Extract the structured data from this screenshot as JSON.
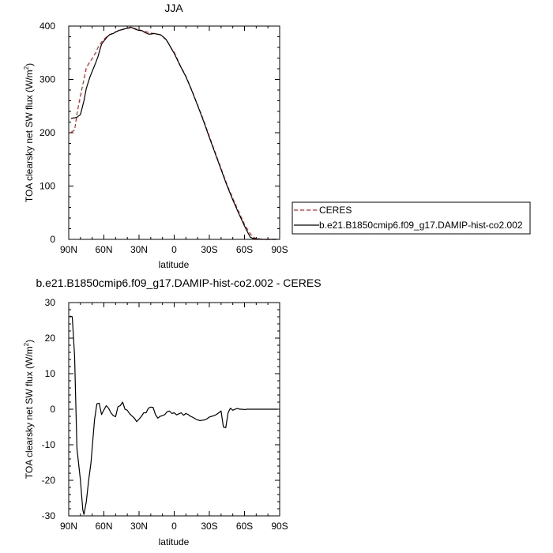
{
  "chart_data": [
    {
      "type": "line",
      "title": "JJA",
      "xlabel": "latitude",
      "ylabel": "TOA clearsky net SW flux (W/m²)",
      "xlim": [
        90,
        -90
      ],
      "ylim": [
        0,
        400
      ],
      "x_ticks": [
        90,
        60,
        30,
        0,
        -30,
        -60,
        -90
      ],
      "x_tick_labels": [
        "90N",
        "60N",
        "30N",
        "0",
        "30S",
        "60S",
        "90S"
      ],
      "y_ticks": [
        0,
        100,
        200,
        300,
        400
      ],
      "y_tick_labels": [
        "0",
        "100",
        "200",
        "300",
        "400"
      ],
      "legend": "outside-right",
      "series": [
        {
          "name": "CERES",
          "color": "#e8191a",
          "dash": "dashed",
          "x": [
            88,
            85,
            83,
            80,
            77,
            75,
            72,
            70,
            67,
            65,
            62,
            60,
            57,
            55,
            52,
            50,
            47,
            45,
            42,
            40,
            37,
            35,
            32,
            30,
            27,
            25,
            22,
            20,
            17,
            15,
            12,
            10,
            7,
            5,
            2,
            0,
            -5,
            -10,
            -15,
            -20,
            -25,
            -30,
            -35,
            -40,
            -45,
            -50,
            -55,
            -60,
            -63,
            -65,
            -67,
            -70,
            -72,
            -75,
            -80,
            -85,
            -88
          ],
          "y": [
            201,
            205,
            235,
            270,
            300,
            322,
            333,
            339,
            350,
            360,
            370,
            375,
            381,
            384,
            387,
            389,
            391,
            393,
            394,
            396,
            396,
            396,
            395,
            393,
            391,
            390,
            388,
            387,
            386,
            385,
            384,
            381,
            374,
            368,
            357,
            351,
            327,
            306,
            280,
            252,
            224,
            193,
            163,
            133,
            103,
            77,
            52,
            28,
            17,
            10,
            5,
            1,
            1,
            0,
            0,
            0,
            0
          ]
        },
        {
          "name": "b.e21.B1850cmip6.f09_g17.DAMIP-hist-co2.002",
          "color": "#000000",
          "dash": "solid",
          "x": [
            88,
            85,
            83,
            80,
            77,
            75,
            72,
            70,
            67,
            65,
            62,
            60,
            57,
            55,
            52,
            50,
            47,
            45,
            42,
            40,
            37,
            35,
            32,
            30,
            27,
            25,
            22,
            20,
            17,
            15,
            12,
            10,
            7,
            5,
            2,
            0,
            -5,
            -10,
            -15,
            -20,
            -25,
            -30,
            -35,
            -40,
            -45,
            -50,
            -55,
            -60,
            -63,
            -65,
            -67,
            -70,
            -72,
            -75,
            -80,
            -85,
            -88
          ],
          "y": [
            227,
            228,
            229,
            234,
            260,
            283,
            304,
            315,
            331,
            343,
            366,
            372,
            380,
            384,
            386,
            389,
            392,
            393,
            395,
            396,
            398,
            396,
            393,
            392,
            391,
            388,
            385,
            385,
            386,
            385,
            384,
            381,
            375,
            368,
            356,
            349,
            326,
            305,
            279,
            251,
            222,
            191,
            161,
            131,
            101,
            74,
            49,
            25,
            12,
            4,
            2,
            1,
            1,
            0,
            0,
            0,
            0
          ]
        }
      ]
    },
    {
      "type": "line",
      "title": "b.e21.B1850cmip6.f09_g17.DAMIP-hist-co2.002 - CERES",
      "xlabel": "latitude",
      "ylabel": "TOA clearsky net SW flux (W/m²)",
      "xlim": [
        90,
        -90
      ],
      "ylim": [
        -30,
        30
      ],
      "x_ticks": [
        90,
        60,
        30,
        0,
        -30,
        -60,
        -90
      ],
      "x_tick_labels": [
        "90N",
        "60N",
        "30N",
        "0",
        "30S",
        "60S",
        "90S"
      ],
      "y_ticks": [
        -30,
        -20,
        -10,
        0,
        10,
        20,
        30
      ],
      "y_tick_labels": [
        "-30",
        "-20",
        "-10",
        "0",
        "10",
        "20",
        "30"
      ],
      "series": [
        {
          "color": "#000000",
          "dash": "solid",
          "x": [
            89,
            87,
            85,
            83,
            80,
            78,
            77,
            75,
            73,
            71,
            68,
            66,
            64,
            62,
            60,
            58,
            56,
            54,
            52,
            50,
            48,
            46,
            44,
            42,
            40,
            38,
            36,
            34,
            32,
            30,
            28,
            26,
            24,
            22,
            20,
            18,
            16,
            14,
            12,
            10,
            8,
            6,
            4,
            2,
            0,
            -2,
            -4,
            -6,
            -8,
            -10,
            -12,
            -14,
            -16,
            -18,
            -20,
            -22,
            -24,
            -26,
            -28,
            -30,
            -32,
            -34,
            -36,
            -38,
            -40,
            -42,
            -44,
            -46,
            -48,
            -50,
            -52,
            -54,
            -56,
            -58,
            -60,
            -62,
            -64,
            -66,
            -68,
            -70,
            -72,
            -75,
            -80,
            -85,
            -88
          ],
          "y": [
            26.2,
            26.0,
            15.0,
            -11.0,
            -20.0,
            -28.3,
            -29.6,
            -26.0,
            -20.0,
            -15.0,
            -3.0,
            1.5,
            1.7,
            -1.5,
            -0.2,
            1.0,
            0.3,
            -1.0,
            -1.8,
            -2.1,
            0.7,
            1.0,
            2.0,
            0.0,
            -0.3,
            -1.3,
            -1.9,
            -2.5,
            -3.5,
            -2.8,
            -2.0,
            -1.0,
            -1.0,
            0.3,
            0.6,
            0.5,
            -1.5,
            -2.5,
            -2.0,
            -1.8,
            -1.5,
            -0.7,
            -0.5,
            -1.2,
            -1.0,
            -1.6,
            -1.3,
            -1.0,
            -1.7,
            -1.2,
            -1.5,
            -2.0,
            -2.3,
            -2.7,
            -3.0,
            -3.2,
            -3.1,
            -3.0,
            -2.7,
            -2.2,
            -2.0,
            -1.8,
            -1.5,
            -1.0,
            -0.5,
            -5.0,
            -5.2,
            -1.0,
            0.3,
            -0.3,
            0.0,
            0.2,
            0.0,
            0.0,
            -0.1,
            0.0,
            0.0,
            0.0,
            0.0,
            0.0,
            0.0,
            0.0,
            0.0,
            0.0,
            0.0
          ]
        }
      ]
    }
  ]
}
